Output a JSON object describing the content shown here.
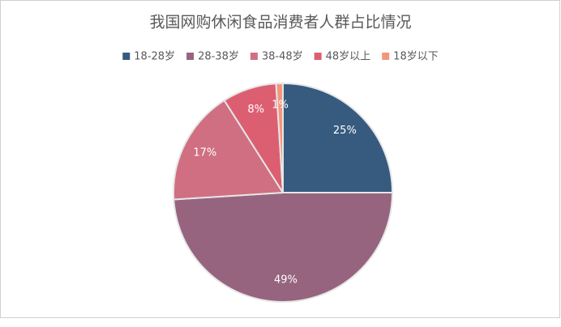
{
  "chart_data": {
    "type": "pie",
    "title": "我国网购休闲食品消费者人群占比情况",
    "categories": [
      "18-28岁",
      "28-38岁",
      "38-48岁",
      "48岁以上",
      "18岁以下"
    ],
    "values": [
      25,
      49,
      17,
      8,
      1
    ],
    "value_labels": [
      "25%",
      "49%",
      "17%",
      "8%",
      "1%"
    ],
    "colors": [
      "#375a7f",
      "#96647f",
      "#d06f81",
      "#dc5f71",
      "#f4967c"
    ],
    "legend": "top"
  }
}
